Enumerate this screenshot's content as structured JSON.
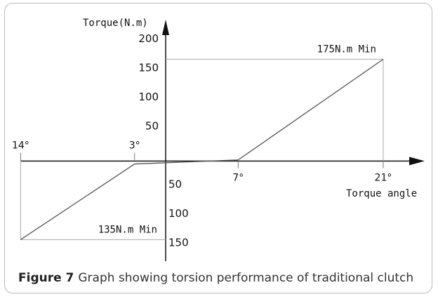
{
  "chart_data": {
    "type": "line",
    "y_label": "Torque(N.m)",
    "x_label": "Torque angle",
    "x": [
      -14,
      -3,
      7,
      21
    ],
    "series": [
      {
        "values": [
          -135,
          -5,
          2,
          175
        ],
        "color": "#555555"
      }
    ],
    "xlim": [
      -14.5,
      25
    ],
    "ylim": [
      -172,
      243
    ],
    "xticks": [
      {
        "value": -14,
        "label": "14°"
      },
      {
        "value": -3,
        "label": "3°"
      },
      {
        "value": 7,
        "label": "7°"
      },
      {
        "value": 21,
        "label": "21°"
      }
    ],
    "yticks": [
      {
        "value": -150,
        "label": "150"
      },
      {
        "value": -100,
        "label": "100"
      },
      {
        "value": -50,
        "label": "50"
      },
      50,
      100,
      150,
      200
    ],
    "annotations": [
      {
        "x": 21,
        "y": 175,
        "text": "175N.m Min"
      },
      {
        "x": -14,
        "y": -135,
        "text": "135N.m Min"
      }
    ],
    "caption": {
      "label": "Figure 7",
      "text": "Graph showing torsion performance of traditional clutch"
    }
  }
}
